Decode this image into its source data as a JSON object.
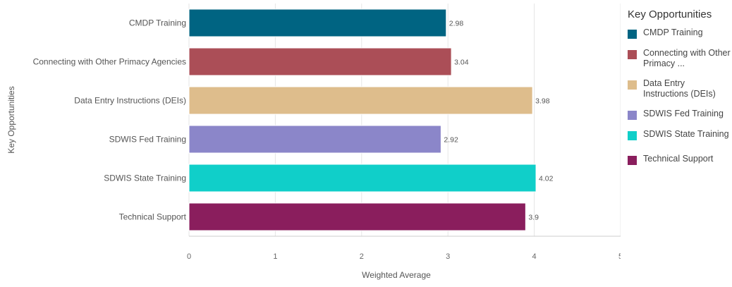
{
  "chart_data": {
    "type": "bar",
    "orientation": "horizontal",
    "categories": [
      "CMDP Training",
      "Connecting with Other Primacy Agencies",
      "Data Entry Instructions (DEIs)",
      "SDWIS Fed Training",
      "SDWIS State Training",
      "Technical Support"
    ],
    "values": [
      2.98,
      3.04,
      3.98,
      2.92,
      4.02,
      3.9
    ],
    "data_labels": [
      "2.98",
      "3.04",
      "3.98",
      "2.92",
      "4.02",
      "3.9"
    ],
    "colors": [
      "#006482",
      "#AB4E57",
      "#DEBD8C",
      "#8B86C9",
      "#10CFC9",
      "#8A1E5D"
    ],
    "xlabel": "Weighted Average",
    "ylabel": "Key Opportunities",
    "xlim": [
      0,
      5
    ],
    "xticks": [
      "0",
      "1",
      "2",
      "3",
      "4",
      "5"
    ],
    "grid": true,
    "legend_position": "right"
  },
  "legend": {
    "title": "Key Opportunities",
    "items": [
      {
        "label": "CMDP Training",
        "color": "#006482"
      },
      {
        "label": "Connecting with Other Primacy ...",
        "color": "#AB4E57"
      },
      {
        "label": "Data Entry Instructions (DEIs)",
        "color": "#DEBD8C"
      },
      {
        "label": "SDWIS Fed Training",
        "color": "#8B86C9"
      },
      {
        "label": "SDWIS State Training",
        "color": "#10CFC9"
      },
      {
        "label": "Technical Support",
        "color": "#8A1E5D"
      }
    ]
  }
}
